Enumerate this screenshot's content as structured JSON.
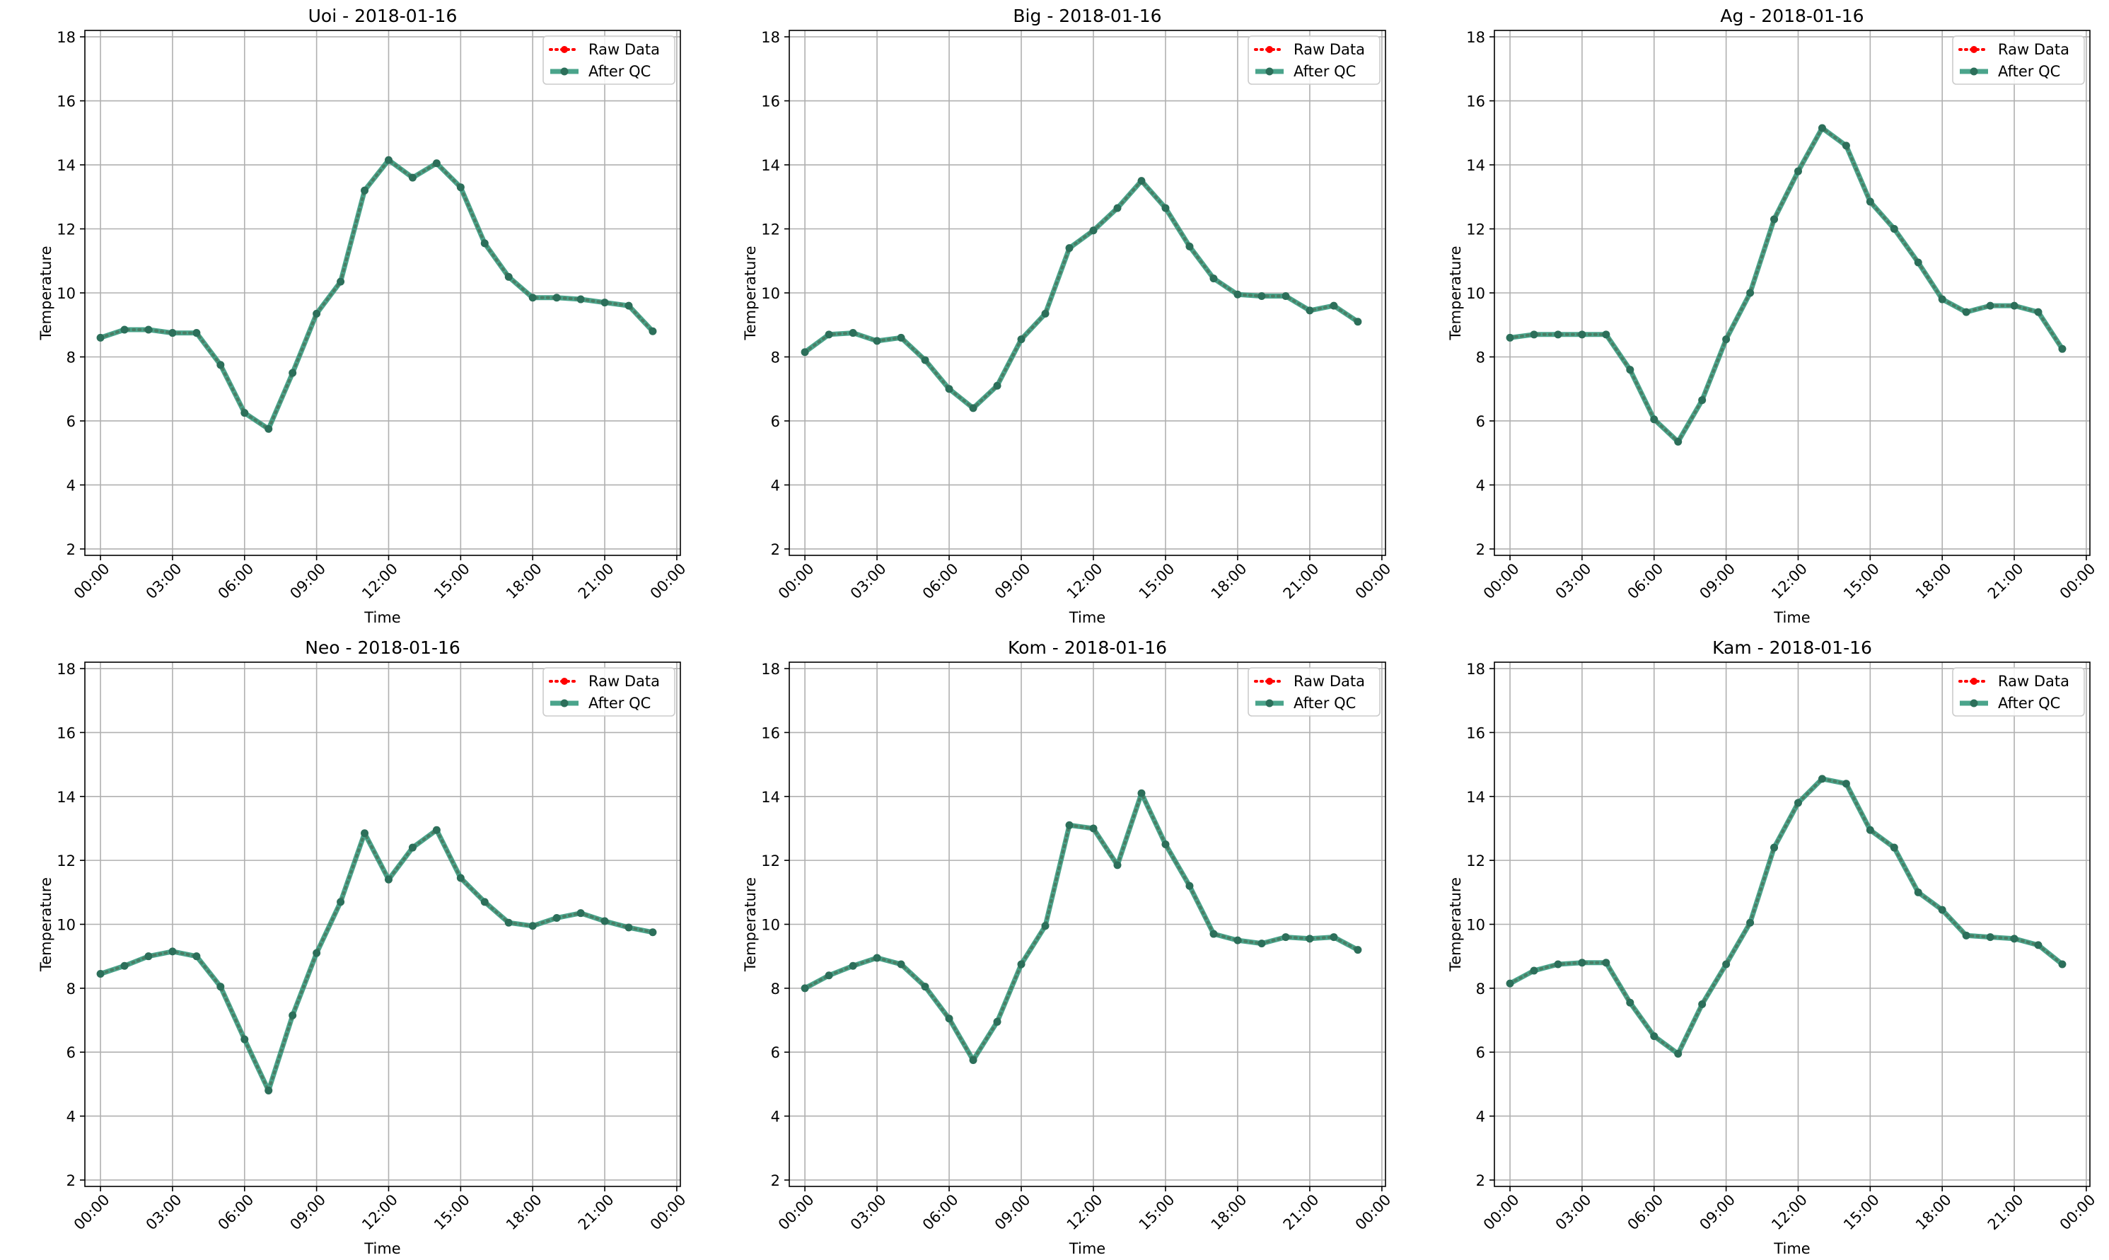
{
  "figure": {
    "background": "#ffffff"
  },
  "chart_data": [
    {
      "type": "line",
      "title": "Uoi - 2018-01-16",
      "xlabel": "Time",
      "ylabel": "Temperature",
      "x_ticks": [
        "00:00",
        "03:00",
        "06:00",
        "09:00",
        "12:00",
        "15:00",
        "18:00",
        "21:00",
        "00:00"
      ],
      "x_tick_hours": [
        0,
        3,
        6,
        9,
        12,
        15,
        18,
        21,
        24
      ],
      "xlim_hours": [
        -0.65,
        24.15
      ],
      "y_ticks": [
        2,
        4,
        6,
        8,
        10,
        12,
        14,
        16,
        18
      ],
      "ylim": [
        1.8,
        18.2
      ],
      "grid": true,
      "legend_placement": "top-right",
      "x_hours": [
        0,
        1,
        2,
        3,
        4,
        5,
        6,
        7,
        8,
        9,
        10,
        11,
        12,
        13,
        14,
        15,
        16,
        17,
        18,
        19,
        20,
        21,
        22,
        23
      ],
      "series": [
        {
          "name": "Raw Data",
          "color": "#ff0000",
          "style": "dotted",
          "marker": "circle",
          "values": [
            8.6,
            8.85,
            8.85,
            8.75,
            8.75,
            7.75,
            6.25,
            5.75,
            7.5,
            9.35,
            10.35,
            13.2,
            14.15,
            13.6,
            14.05,
            13.3,
            11.55,
            10.5,
            9.85,
            9.85,
            9.8,
            9.7,
            9.6,
            8.8
          ]
        },
        {
          "name": "After QC",
          "color": "#2a9477",
          "style": "solid",
          "marker": "circle",
          "values": [
            8.6,
            8.85,
            8.85,
            8.75,
            8.75,
            7.75,
            6.25,
            5.75,
            7.5,
            9.35,
            10.35,
            13.2,
            14.15,
            13.6,
            14.05,
            13.3,
            11.55,
            10.5,
            9.85,
            9.85,
            9.8,
            9.7,
            9.6,
            8.8
          ]
        }
      ]
    },
    {
      "type": "line",
      "title": "Big - 2018-01-16",
      "xlabel": "Time",
      "ylabel": "Temperature",
      "x_ticks": [
        "00:00",
        "03:00",
        "06:00",
        "09:00",
        "12:00",
        "15:00",
        "18:00",
        "21:00",
        "00:00"
      ],
      "x_tick_hours": [
        0,
        3,
        6,
        9,
        12,
        15,
        18,
        21,
        24
      ],
      "xlim_hours": [
        -0.65,
        24.15
      ],
      "y_ticks": [
        2,
        4,
        6,
        8,
        10,
        12,
        14,
        16,
        18
      ],
      "ylim": [
        1.8,
        18.2
      ],
      "grid": true,
      "legend_placement": "top-right",
      "x_hours": [
        0,
        1,
        2,
        3,
        4,
        5,
        6,
        7,
        8,
        9,
        10,
        11,
        12,
        13,
        14,
        15,
        16,
        17,
        18,
        19,
        20,
        21,
        22,
        23
      ],
      "series": [
        {
          "name": "Raw Data",
          "color": "#ff0000",
          "style": "dotted",
          "marker": "circle",
          "values": [
            8.15,
            8.7,
            8.75,
            8.5,
            8.6,
            7.9,
            7.0,
            6.4,
            7.1,
            8.55,
            9.35,
            11.4,
            11.95,
            12.65,
            13.5,
            12.65,
            11.45,
            10.45,
            9.95,
            9.9,
            9.9,
            9.45,
            9.6,
            9.1
          ]
        },
        {
          "name": "After QC",
          "color": "#2a9477",
          "style": "solid",
          "marker": "circle",
          "values": [
            8.15,
            8.7,
            8.75,
            8.5,
            8.6,
            7.9,
            7.0,
            6.4,
            7.1,
            8.55,
            9.35,
            11.4,
            11.95,
            12.65,
            13.5,
            12.65,
            11.45,
            10.45,
            9.95,
            9.9,
            9.9,
            9.45,
            9.6,
            9.1
          ]
        }
      ]
    },
    {
      "type": "line",
      "title": "Ag - 2018-01-16",
      "xlabel": "Time",
      "ylabel": "Temperature",
      "x_ticks": [
        "00:00",
        "03:00",
        "06:00",
        "09:00",
        "12:00",
        "15:00",
        "18:00",
        "21:00",
        "00:00"
      ],
      "x_tick_hours": [
        0,
        3,
        6,
        9,
        12,
        15,
        18,
        21,
        24
      ],
      "xlim_hours": [
        -0.65,
        24.15
      ],
      "y_ticks": [
        2,
        4,
        6,
        8,
        10,
        12,
        14,
        16,
        18
      ],
      "ylim": [
        1.8,
        18.2
      ],
      "grid": true,
      "legend_placement": "top-right",
      "x_hours": [
        0,
        1,
        2,
        3,
        4,
        5,
        6,
        7,
        8,
        9,
        10,
        11,
        12,
        13,
        14,
        15,
        16,
        17,
        18,
        19,
        20,
        21,
        22,
        23
      ],
      "series": [
        {
          "name": "Raw Data",
          "color": "#ff0000",
          "style": "dotted",
          "marker": "circle",
          "values": [
            8.6,
            8.7,
            8.7,
            8.7,
            8.7,
            7.6,
            6.05,
            5.35,
            6.65,
            8.55,
            10.0,
            12.3,
            13.8,
            15.15,
            14.6,
            12.85,
            12.0,
            10.95,
            9.8,
            9.4,
            9.6,
            9.6,
            9.4,
            8.25
          ]
        },
        {
          "name": "After QC",
          "color": "#2a9477",
          "style": "solid",
          "marker": "circle",
          "values": [
            8.6,
            8.7,
            8.7,
            8.7,
            8.7,
            7.6,
            6.05,
            5.35,
            6.65,
            8.55,
            10.0,
            12.3,
            13.8,
            15.15,
            14.6,
            12.85,
            12.0,
            10.95,
            9.8,
            9.4,
            9.6,
            9.6,
            9.4,
            8.25
          ]
        }
      ]
    },
    {
      "type": "line",
      "title": "Neo - 2018-01-16",
      "xlabel": "Time",
      "ylabel": "Temperature",
      "x_ticks": [
        "00:00",
        "03:00",
        "06:00",
        "09:00",
        "12:00",
        "15:00",
        "18:00",
        "21:00",
        "00:00"
      ],
      "x_tick_hours": [
        0,
        3,
        6,
        9,
        12,
        15,
        18,
        21,
        24
      ],
      "xlim_hours": [
        -0.65,
        24.15
      ],
      "y_ticks": [
        2,
        4,
        6,
        8,
        10,
        12,
        14,
        16,
        18
      ],
      "ylim": [
        1.8,
        18.2
      ],
      "grid": true,
      "legend_placement": "top-right",
      "x_hours": [
        0,
        1,
        2,
        3,
        4,
        5,
        6,
        7,
        8,
        9,
        10,
        11,
        12,
        13,
        14,
        15,
        16,
        17,
        18,
        19,
        20,
        21,
        22,
        23
      ],
      "series": [
        {
          "name": "Raw Data",
          "color": "#ff0000",
          "style": "dotted",
          "marker": "circle",
          "values": [
            8.45,
            8.7,
            9.0,
            9.15,
            9.0,
            8.05,
            6.4,
            4.8,
            7.15,
            9.1,
            10.7,
            12.85,
            11.4,
            12.4,
            12.95,
            11.45,
            10.7,
            10.05,
            9.95,
            10.2,
            10.35,
            10.1,
            9.9,
            9.75
          ]
        },
        {
          "name": "After QC",
          "color": "#2a9477",
          "style": "solid",
          "marker": "circle",
          "values": [
            8.45,
            8.7,
            9.0,
            9.15,
            9.0,
            8.05,
            6.4,
            4.8,
            7.15,
            9.1,
            10.7,
            12.85,
            11.4,
            12.4,
            12.95,
            11.45,
            10.7,
            10.05,
            9.95,
            10.2,
            10.35,
            10.1,
            9.9,
            9.75
          ]
        }
      ]
    },
    {
      "type": "line",
      "title": "Kom - 2018-01-16",
      "xlabel": "Time",
      "ylabel": "Temperature",
      "x_ticks": [
        "00:00",
        "03:00",
        "06:00",
        "09:00",
        "12:00",
        "15:00",
        "18:00",
        "21:00",
        "00:00"
      ],
      "x_tick_hours": [
        0,
        3,
        6,
        9,
        12,
        15,
        18,
        21,
        24
      ],
      "xlim_hours": [
        -0.65,
        24.15
      ],
      "y_ticks": [
        2,
        4,
        6,
        8,
        10,
        12,
        14,
        16,
        18
      ],
      "ylim": [
        1.8,
        18.2
      ],
      "grid": true,
      "legend_placement": "top-right",
      "x_hours": [
        0,
        1,
        2,
        3,
        4,
        5,
        6,
        7,
        8,
        9,
        10,
        11,
        12,
        13,
        14,
        15,
        16,
        17,
        18,
        19,
        20,
        21,
        22,
        23
      ],
      "series": [
        {
          "name": "Raw Data",
          "color": "#ff0000",
          "style": "dotted",
          "marker": "circle",
          "values": [
            8.0,
            8.4,
            8.7,
            8.95,
            8.75,
            8.05,
            7.05,
            5.75,
            6.95,
            8.75,
            9.95,
            13.1,
            13.0,
            11.85,
            14.1,
            12.5,
            11.2,
            9.7,
            9.5,
            9.4,
            9.6,
            9.55,
            9.6,
            9.2
          ]
        },
        {
          "name": "After QC",
          "color": "#2a9477",
          "style": "solid",
          "marker": "circle",
          "values": [
            8.0,
            8.4,
            8.7,
            8.95,
            8.75,
            8.05,
            7.05,
            5.75,
            6.95,
            8.75,
            9.95,
            13.1,
            13.0,
            11.85,
            14.1,
            12.5,
            11.2,
            9.7,
            9.5,
            9.4,
            9.6,
            9.55,
            9.6,
            9.2
          ]
        }
      ]
    },
    {
      "type": "line",
      "title": "Kam - 2018-01-16",
      "xlabel": "Time",
      "ylabel": "Temperature",
      "x_ticks": [
        "00:00",
        "03:00",
        "06:00",
        "09:00",
        "12:00",
        "15:00",
        "18:00",
        "21:00",
        "00:00"
      ],
      "x_tick_hours": [
        0,
        3,
        6,
        9,
        12,
        15,
        18,
        21,
        24
      ],
      "xlim_hours": [
        -0.65,
        24.15
      ],
      "y_ticks": [
        2,
        4,
        6,
        8,
        10,
        12,
        14,
        16,
        18
      ],
      "ylim": [
        1.8,
        18.2
      ],
      "grid": true,
      "legend_placement": "top-right",
      "x_hours": [
        0,
        1,
        2,
        3,
        4,
        5,
        6,
        7,
        8,
        9,
        10,
        11,
        12,
        13,
        14,
        15,
        16,
        17,
        18,
        19,
        20,
        21,
        22,
        23
      ],
      "series": [
        {
          "name": "Raw Data",
          "color": "#ff0000",
          "style": "dotted",
          "marker": "circle",
          "values": [
            8.15,
            8.55,
            8.75,
            8.8,
            8.8,
            7.55,
            6.5,
            5.95,
            7.5,
            8.75,
            10.05,
            12.4,
            13.8,
            14.55,
            14.4,
            12.95,
            12.4,
            11.0,
            10.45,
            9.65,
            9.6,
            9.55,
            9.35,
            8.75
          ]
        },
        {
          "name": "After QC",
          "color": "#2a9477",
          "style": "solid",
          "marker": "circle",
          "values": [
            8.15,
            8.55,
            8.75,
            8.8,
            8.8,
            7.55,
            6.5,
            5.95,
            7.5,
            8.75,
            10.05,
            12.4,
            13.8,
            14.55,
            14.4,
            12.95,
            12.4,
            11.0,
            10.45,
            9.65,
            9.6,
            9.55,
            9.35,
            8.75
          ]
        }
      ]
    }
  ]
}
